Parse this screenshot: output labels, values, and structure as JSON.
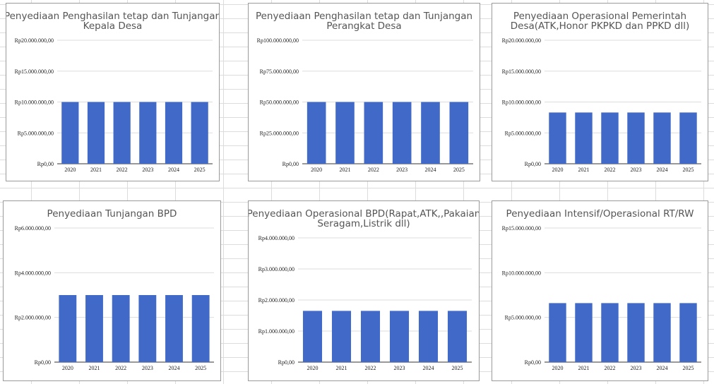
{
  "chart_data": [
    {
      "type": "bar",
      "title": "Penyediaan Penghasilan tetap dan Tunjangan Kepala Desa",
      "title_lines": [
        "Penyediaan Penghasilan tetap dan Tunjangan",
        "Kepala Desa"
      ],
      "categories": [
        "2020",
        "2021",
        "2022",
        "2023",
        "2024",
        "2025"
      ],
      "values": [
        10000000,
        10000000,
        10000000,
        10000000,
        10000000,
        10000000
      ],
      "yticks": [
        0,
        5000000,
        10000000,
        15000000,
        20000000
      ],
      "ytick_labels": [
        "Rp0,00",
        "Rp5.000.000,00",
        "Rp10.000.000,00",
        "Rp15.000.000,00",
        "Rp20.000.000,00"
      ],
      "ylim": [
        0,
        20000000
      ],
      "xlabel": "",
      "ylabel": "",
      "grid": true,
      "color": "#4169c8"
    },
    {
      "type": "bar",
      "title": "Penyediaan Penghasilan tetap dan Tunjangan Perangkat Desa",
      "title_lines": [
        "Penyediaan Penghasilan tetap dan Tunjangan",
        "Perangkat Desa"
      ],
      "categories": [
        "2020",
        "2021",
        "2022",
        "2023",
        "2024",
        "2025"
      ],
      "values": [
        50000000,
        50000000,
        50000000,
        50000000,
        50000000,
        50000000
      ],
      "yticks": [
        0,
        25000000,
        50000000,
        75000000,
        100000000
      ],
      "ytick_labels": [
        "Rp0,00",
        "Rp25.000.000,00",
        "Rp50.000.000,00",
        "Rp75.000.000,00",
        "Rp100.000.000,00"
      ],
      "ylim": [
        0,
        100000000
      ],
      "xlabel": "",
      "ylabel": "",
      "grid": true,
      "color": "#4169c8"
    },
    {
      "type": "bar",
      "title": "Penyediaan Operasional Pemerintah Desa(ATK,Honor PKPKD dan PPKD dll)",
      "title_lines": [
        "Penyediaan Operasional Pemerintah",
        "Desa(ATK,Honor PKPKD dan PPKD dll)"
      ],
      "categories": [
        "2020",
        "2021",
        "2022",
        "2023",
        "2024",
        "2025"
      ],
      "values": [
        8300000,
        8300000,
        8300000,
        8300000,
        8300000,
        8300000
      ],
      "yticks": [
        0,
        5000000,
        10000000,
        15000000,
        20000000
      ],
      "ytick_labels": [
        "Rp0,00",
        "Rp5.000.000,00",
        "Rp10.000.000,00",
        "Rp15.000.000,00",
        "Rp20.000.000,00"
      ],
      "ylim": [
        0,
        20000000
      ],
      "xlabel": "",
      "ylabel": "",
      "grid": true,
      "color": "#4169c8"
    },
    {
      "type": "bar",
      "title": "Penyediaan Tunjangan BPD",
      "title_lines": [
        "Penyediaan Tunjangan BPD"
      ],
      "categories": [
        "2020",
        "2021",
        "2022",
        "2023",
        "2024",
        "2025"
      ],
      "values": [
        3000000,
        3000000,
        3000000,
        3000000,
        3000000,
        3000000
      ],
      "yticks": [
        0,
        2000000,
        4000000,
        6000000
      ],
      "ytick_labels": [
        "Rp0,00",
        "Rp2.000.000,00",
        "Rp4.000.000,00",
        "Rp6.000.000,00"
      ],
      "ylim": [
        0,
        6000000
      ],
      "xlabel": "",
      "ylabel": "",
      "grid": true,
      "color": "#4169c8"
    },
    {
      "type": "bar",
      "title": "Penyediaan Operasional BPD(Rapat,ATK,,Pakaian Seragam,Listrik dll)",
      "title_lines": [
        "Penyediaan Operasional BPD(Rapat,ATK,,Pakaian",
        "Seragam,Listrik dll)"
      ],
      "categories": [
        "2020",
        "2021",
        "2022",
        "2023",
        "2024",
        "2025"
      ],
      "values": [
        1650000,
        1650000,
        1650000,
        1650000,
        1650000,
        1650000
      ],
      "yticks": [
        0,
        1000000,
        2000000,
        3000000,
        4000000
      ],
      "ytick_labels": [
        "Rp0,00",
        "Rp1.000.000,00",
        "Rp2.000.000,00",
        "Rp3.000.000,00",
        "Rp4.000.000,00"
      ],
      "ylim": [
        0,
        4000000
      ],
      "xlabel": "",
      "ylabel": "",
      "grid": true,
      "color": "#4169c8"
    },
    {
      "type": "bar",
      "title": "Penyediaan Intensif/Operasional RT/RW",
      "title_lines": [
        "Penyediaan Intensif/Operasional RT/RW"
      ],
      "categories": [
        "2020",
        "2021",
        "2022",
        "2023",
        "2024",
        "2025"
      ],
      "values": [
        6600000,
        6600000,
        6600000,
        6600000,
        6600000,
        6600000
      ],
      "yticks": [
        0,
        5000000,
        10000000,
        15000000
      ],
      "ytick_labels": [
        "Rp0,00",
        "Rp5.000.000,00",
        "Rp10.000.000,00",
        "Rp15.000.000,00"
      ],
      "ylim": [
        0,
        15000000
      ],
      "xlabel": "",
      "ylabel": "",
      "grid": true,
      "color": "#4169c8"
    }
  ]
}
